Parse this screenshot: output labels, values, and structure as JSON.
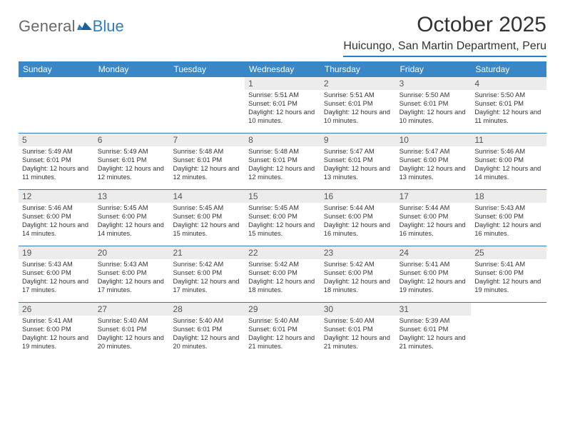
{
  "logo": {
    "general": "General",
    "blue": "Blue"
  },
  "title": "October 2025",
  "location": "Huicungo, San Martin Department, Peru",
  "colors": {
    "header_bg": "#3a87c8",
    "accent": "#2f7cc0",
    "daynum_bg": "#ececec",
    "text": "#333333"
  },
  "dayNames": [
    "Sunday",
    "Monday",
    "Tuesday",
    "Wednesday",
    "Thursday",
    "Friday",
    "Saturday"
  ],
  "weeks": [
    [
      {
        "blank": true
      },
      {
        "blank": true
      },
      {
        "blank": true
      },
      {
        "n": "1",
        "sunrise": "5:51 AM",
        "sunset": "6:01 PM",
        "daylight": "12 hours and 10 minutes."
      },
      {
        "n": "2",
        "sunrise": "5:51 AM",
        "sunset": "6:01 PM",
        "daylight": "12 hours and 10 minutes."
      },
      {
        "n": "3",
        "sunrise": "5:50 AM",
        "sunset": "6:01 PM",
        "daylight": "12 hours and 10 minutes."
      },
      {
        "n": "4",
        "sunrise": "5:50 AM",
        "sunset": "6:01 PM",
        "daylight": "12 hours and 11 minutes."
      }
    ],
    [
      {
        "n": "5",
        "sunrise": "5:49 AM",
        "sunset": "6:01 PM",
        "daylight": "12 hours and 11 minutes."
      },
      {
        "n": "6",
        "sunrise": "5:49 AM",
        "sunset": "6:01 PM",
        "daylight": "12 hours and 12 minutes."
      },
      {
        "n": "7",
        "sunrise": "5:48 AM",
        "sunset": "6:01 PM",
        "daylight": "12 hours and 12 minutes."
      },
      {
        "n": "8",
        "sunrise": "5:48 AM",
        "sunset": "6:01 PM",
        "daylight": "12 hours and 12 minutes."
      },
      {
        "n": "9",
        "sunrise": "5:47 AM",
        "sunset": "6:01 PM",
        "daylight": "12 hours and 13 minutes."
      },
      {
        "n": "10",
        "sunrise": "5:47 AM",
        "sunset": "6:00 PM",
        "daylight": "12 hours and 13 minutes."
      },
      {
        "n": "11",
        "sunrise": "5:46 AM",
        "sunset": "6:00 PM",
        "daylight": "12 hours and 14 minutes."
      }
    ],
    [
      {
        "n": "12",
        "sunrise": "5:46 AM",
        "sunset": "6:00 PM",
        "daylight": "12 hours and 14 minutes."
      },
      {
        "n": "13",
        "sunrise": "5:45 AM",
        "sunset": "6:00 PM",
        "daylight": "12 hours and 14 minutes."
      },
      {
        "n": "14",
        "sunrise": "5:45 AM",
        "sunset": "6:00 PM",
        "daylight": "12 hours and 15 minutes."
      },
      {
        "n": "15",
        "sunrise": "5:45 AM",
        "sunset": "6:00 PM",
        "daylight": "12 hours and 15 minutes."
      },
      {
        "n": "16",
        "sunrise": "5:44 AM",
        "sunset": "6:00 PM",
        "daylight": "12 hours and 16 minutes."
      },
      {
        "n": "17",
        "sunrise": "5:44 AM",
        "sunset": "6:00 PM",
        "daylight": "12 hours and 16 minutes."
      },
      {
        "n": "18",
        "sunrise": "5:43 AM",
        "sunset": "6:00 PM",
        "daylight": "12 hours and 16 minutes."
      }
    ],
    [
      {
        "n": "19",
        "sunrise": "5:43 AM",
        "sunset": "6:00 PM",
        "daylight": "12 hours and 17 minutes."
      },
      {
        "n": "20",
        "sunrise": "5:43 AM",
        "sunset": "6:00 PM",
        "daylight": "12 hours and 17 minutes."
      },
      {
        "n": "21",
        "sunrise": "5:42 AM",
        "sunset": "6:00 PM",
        "daylight": "12 hours and 17 minutes."
      },
      {
        "n": "22",
        "sunrise": "5:42 AM",
        "sunset": "6:00 PM",
        "daylight": "12 hours and 18 minutes."
      },
      {
        "n": "23",
        "sunrise": "5:42 AM",
        "sunset": "6:00 PM",
        "daylight": "12 hours and 18 minutes."
      },
      {
        "n": "24",
        "sunrise": "5:41 AM",
        "sunset": "6:00 PM",
        "daylight": "12 hours and 19 minutes."
      },
      {
        "n": "25",
        "sunrise": "5:41 AM",
        "sunset": "6:00 PM",
        "daylight": "12 hours and 19 minutes."
      }
    ],
    [
      {
        "n": "26",
        "sunrise": "5:41 AM",
        "sunset": "6:00 PM",
        "daylight": "12 hours and 19 minutes."
      },
      {
        "n": "27",
        "sunrise": "5:40 AM",
        "sunset": "6:01 PM",
        "daylight": "12 hours and 20 minutes."
      },
      {
        "n": "28",
        "sunrise": "5:40 AM",
        "sunset": "6:01 PM",
        "daylight": "12 hours and 20 minutes."
      },
      {
        "n": "29",
        "sunrise": "5:40 AM",
        "sunset": "6:01 PM",
        "daylight": "12 hours and 21 minutes."
      },
      {
        "n": "30",
        "sunrise": "5:40 AM",
        "sunset": "6:01 PM",
        "daylight": "12 hours and 21 minutes."
      },
      {
        "n": "31",
        "sunrise": "5:39 AM",
        "sunset": "6:01 PM",
        "daylight": "12 hours and 21 minutes."
      },
      {
        "blank": true
      }
    ]
  ],
  "labels": {
    "sunrise": "Sunrise:",
    "sunset": "Sunset:",
    "daylight": "Daylight:"
  }
}
